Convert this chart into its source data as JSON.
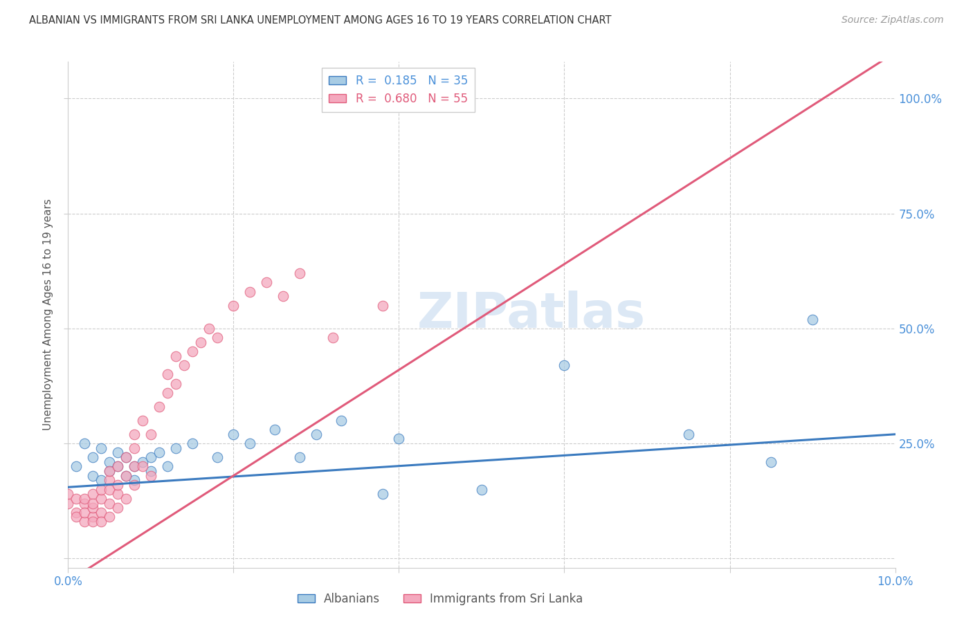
{
  "title": "ALBANIAN VS IMMIGRANTS FROM SRI LANKA UNEMPLOYMENT AMONG AGES 16 TO 19 YEARS CORRELATION CHART",
  "source": "Source: ZipAtlas.com",
  "ylabel": "Unemployment Among Ages 16 to 19 years",
  "xlim": [
    0.0,
    0.1
  ],
  "ylim": [
    -0.02,
    1.08
  ],
  "ytick_vals": [
    0.0,
    0.25,
    0.5,
    0.75,
    1.0
  ],
  "ytick_labels": [
    "",
    "25.0%",
    "50.0%",
    "75.0%",
    "100.0%"
  ],
  "xtick_vals": [
    0.0,
    0.02,
    0.04,
    0.06,
    0.08,
    0.1
  ],
  "xtick_labels": [
    "0.0%",
    "",
    "",
    "",
    "",
    "10.0%"
  ],
  "r_albanian": 0.185,
  "n_albanian": 35,
  "r_srilanka": 0.68,
  "n_srilanka": 55,
  "color_albanian": "#a8cce4",
  "color_srilanka": "#f4a9be",
  "line_color_albanian": "#3a7abf",
  "line_color_srilanka": "#e05a7a",
  "background_color": "#ffffff",
  "grid_color": "#cccccc",
  "watermark_color": "#dce8f5",
  "title_color": "#333333",
  "source_color": "#999999",
  "tick_color": "#4a90d9",
  "ylabel_color": "#555555",
  "legend_text_color_alb": "#4a90d9",
  "legend_text_color_sri": "#e05a7a",
  "bottom_legend_color": "#555555",
  "blue_trendline_intercept": 0.155,
  "blue_trendline_slope": 1.15,
  "pink_trendline_intercept": -0.05,
  "pink_trendline_slope": 11.5,
  "albanian_x": [
    0.001,
    0.002,
    0.003,
    0.003,
    0.004,
    0.004,
    0.005,
    0.005,
    0.006,
    0.006,
    0.007,
    0.007,
    0.008,
    0.008,
    0.009,
    0.01,
    0.01,
    0.011,
    0.012,
    0.013,
    0.015,
    0.018,
    0.02,
    0.022,
    0.025,
    0.028,
    0.03,
    0.033,
    0.038,
    0.04,
    0.05,
    0.06,
    0.075,
    0.085,
    0.09
  ],
  "albanian_y": [
    0.2,
    0.25,
    0.18,
    0.22,
    0.17,
    0.24,
    0.19,
    0.21,
    0.2,
    0.23,
    0.18,
    0.22,
    0.2,
    0.17,
    0.21,
    0.22,
    0.19,
    0.23,
    0.2,
    0.24,
    0.25,
    0.22,
    0.27,
    0.25,
    0.28,
    0.22,
    0.27,
    0.3,
    0.14,
    0.26,
    0.15,
    0.42,
    0.27,
    0.21,
    0.52
  ],
  "srilanka_x": [
    0.0,
    0.0,
    0.001,
    0.001,
    0.001,
    0.002,
    0.002,
    0.002,
    0.002,
    0.003,
    0.003,
    0.003,
    0.003,
    0.003,
    0.004,
    0.004,
    0.004,
    0.004,
    0.005,
    0.005,
    0.005,
    0.005,
    0.005,
    0.006,
    0.006,
    0.006,
    0.006,
    0.007,
    0.007,
    0.007,
    0.008,
    0.008,
    0.008,
    0.008,
    0.009,
    0.009,
    0.01,
    0.01,
    0.011,
    0.012,
    0.012,
    0.013,
    0.013,
    0.014,
    0.015,
    0.016,
    0.017,
    0.018,
    0.02,
    0.022,
    0.024,
    0.026,
    0.028,
    0.032,
    0.038
  ],
  "srilanka_y": [
    0.12,
    0.14,
    0.1,
    0.13,
    0.09,
    0.08,
    0.12,
    0.1,
    0.13,
    0.09,
    0.11,
    0.14,
    0.08,
    0.12,
    0.1,
    0.13,
    0.08,
    0.15,
    0.09,
    0.12,
    0.15,
    0.17,
    0.19,
    0.11,
    0.14,
    0.16,
    0.2,
    0.13,
    0.18,
    0.22,
    0.16,
    0.2,
    0.24,
    0.27,
    0.2,
    0.3,
    0.18,
    0.27,
    0.33,
    0.36,
    0.4,
    0.38,
    0.44,
    0.42,
    0.45,
    0.47,
    0.5,
    0.48,
    0.55,
    0.58,
    0.6,
    0.57,
    0.62,
    0.48,
    0.55
  ]
}
